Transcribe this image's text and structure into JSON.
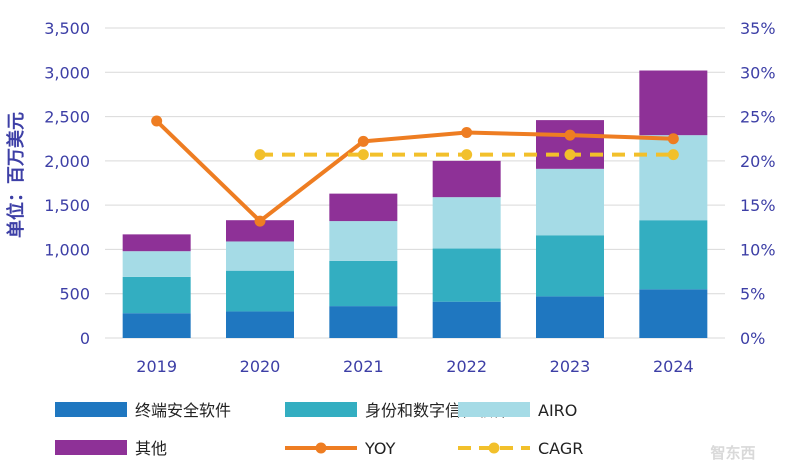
{
  "chart_data": {
    "type": "bar",
    "stacked": true,
    "categories": [
      "2019",
      "2020",
      "2021",
      "2022",
      "2023",
      "2024"
    ],
    "ylabel": "单位：百万美元",
    "ylim": [
      0,
      3500
    ],
    "yticks": [
      "0",
      "500",
      "1,000",
      "1,500",
      "2,000",
      "2,500",
      "3,000",
      "3,500"
    ],
    "y2lim": [
      0,
      35
    ],
    "y2ticks": [
      "0%",
      "5%",
      "10%",
      "15%",
      "20%",
      "25%",
      "30%",
      "35%"
    ],
    "grid": true,
    "legend_position": "bottom",
    "series": [
      {
        "name": "终端安全软件",
        "color": "#1f77c0",
        "values": [
          280,
          300,
          360,
          410,
          470,
          550
        ]
      },
      {
        "name": "身份和数字信任软件",
        "color": "#33aec1",
        "values": [
          410,
          460,
          510,
          600,
          690,
          780
        ]
      },
      {
        "name": "AIRO",
        "color": "#a5dbe6",
        "values": [
          290,
          330,
          450,
          580,
          750,
          960
        ]
      },
      {
        "name": "其他",
        "color": "#8e3197",
        "values": [
          190,
          240,
          310,
          410,
          550,
          730
        ]
      }
    ],
    "lines": [
      {
        "name": "YOY",
        "color": "#ee7d22",
        "style": "solid",
        "axis": "right",
        "values": [
          24.5,
          13.2,
          22.2,
          23.2,
          22.9,
          22.5
        ]
      },
      {
        "name": "CAGR",
        "color": "#f2c02b",
        "style": "dashed",
        "axis": "right",
        "values": [
          null,
          20.7,
          20.7,
          20.7,
          20.7,
          20.7
        ]
      }
    ]
  },
  "watermark": "智东西"
}
